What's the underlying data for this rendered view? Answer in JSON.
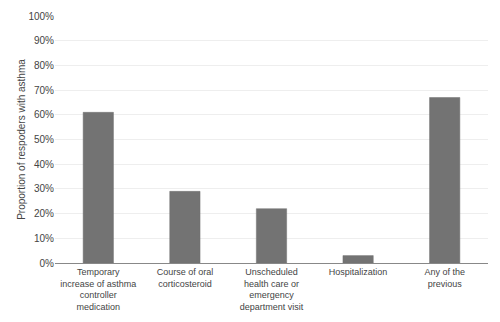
{
  "chart_data": {
    "type": "bar",
    "categories": [
      "Temporary\nincrease of asthma\ncontroller\nmedication",
      "Course of oral\ncorticosteroid",
      "Unscheduled\nhealth care or\nemergency\ndepartment visit",
      "Hospitalization",
      "Any of the\nprevious"
    ],
    "values": [
      0.61,
      0.29,
      0.22,
      0.03,
      0.67
    ],
    "color": "#737373",
    "ylabel": "Proportion of respoders with asthma",
    "ylim": [
      0,
      1.0
    ],
    "yticks": [
      {
        "value": 0.0,
        "label": "0%"
      },
      {
        "value": 0.1,
        "label": "10%"
      },
      {
        "value": 0.2,
        "label": "20%"
      },
      {
        "value": 0.3,
        "label": "30%"
      },
      {
        "value": 0.4,
        "label": "40%"
      },
      {
        "value": 0.5,
        "label": "50%"
      },
      {
        "value": 0.6,
        "label": "60%"
      },
      {
        "value": 0.7,
        "label": "70%"
      },
      {
        "value": 0.8,
        "label": "80%"
      },
      {
        "value": 0.9,
        "label": "90%"
      },
      {
        "value": 1.0,
        "label": "100%"
      }
    ],
    "grid": true
  }
}
